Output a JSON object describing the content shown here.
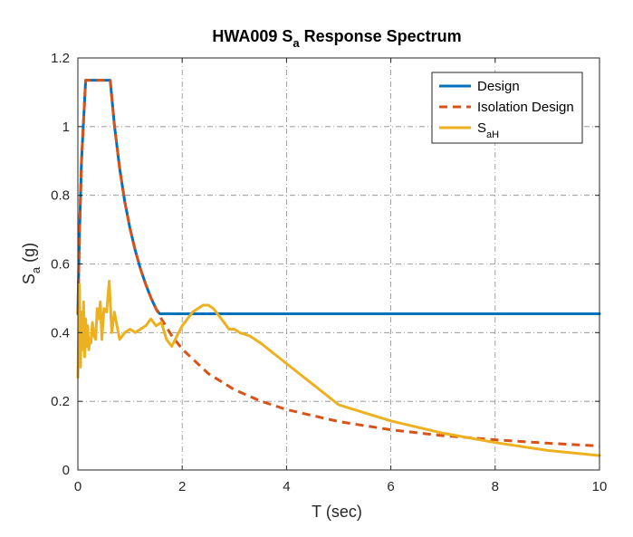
{
  "chart_data": {
    "type": "line",
    "title": {
      "main": "HWA009 S",
      "sub": "a",
      "rest": " Response Spectrum"
    },
    "xlabel": "T (sec)",
    "ylabel": {
      "main": "S",
      "sub": "a",
      "rest": " (g)"
    },
    "xlim": [
      0,
      10
    ],
    "ylim": [
      0,
      1.2
    ],
    "xticks": [
      "0",
      "2",
      "4",
      "6",
      "8",
      "10"
    ],
    "yticks": [
      "0",
      "0.2",
      "0.4",
      "0.6",
      "0.8",
      "1",
      "1.2"
    ],
    "grid": true,
    "legend_position": "top-right",
    "series": [
      {
        "name": "Design",
        "legend": {
          "main": "Design",
          "sub": ""
        },
        "color": "#0072BD",
        "style": "solid",
        "x": [
          0,
          0.03,
          0.07,
          0.13,
          0.15,
          0.62,
          0.7,
          0.8,
          0.9,
          1.0,
          1.1,
          1.2,
          1.3,
          1.4,
          1.5,
          1.57,
          2,
          3,
          4,
          5,
          6,
          7,
          8,
          9,
          10
        ],
        "y": [
          0.455,
          0.68,
          0.9,
          1.08,
          1.135,
          1.135,
          1.005,
          0.879,
          0.781,
          0.703,
          0.639,
          0.586,
          0.541,
          0.502,
          0.469,
          0.455,
          0.455,
          0.455,
          0.455,
          0.455,
          0.455,
          0.455,
          0.455,
          0.455,
          0.455
        ]
      },
      {
        "name": "Isolation Design",
        "legend": {
          "main": "Isolation Design",
          "sub": ""
        },
        "color": "#D95319",
        "style": "dashed",
        "x": [
          0,
          0.03,
          0.07,
          0.13,
          0.15,
          0.62,
          0.7,
          0.8,
          0.9,
          1.0,
          1.1,
          1.2,
          1.3,
          1.4,
          1.5,
          1.6,
          1.8,
          2.0,
          2.5,
          3.0,
          3.5,
          4.0,
          5.0,
          6.0,
          7.0,
          8.0,
          9.0,
          10.0
        ],
        "y": [
          0.455,
          0.68,
          0.9,
          1.08,
          1.135,
          1.135,
          1.005,
          0.879,
          0.781,
          0.703,
          0.639,
          0.586,
          0.541,
          0.502,
          0.469,
          0.44,
          0.391,
          0.352,
          0.281,
          0.234,
          0.201,
          0.176,
          0.141,
          0.117,
          0.1,
          0.088,
          0.078,
          0.07
        ]
      },
      {
        "name": "SaH",
        "legend": {
          "main": "S",
          "sub": "aH"
        },
        "color": "#EDB120",
        "style": "solid",
        "x": [
          0,
          0.03,
          0.05,
          0.07,
          0.09,
          0.11,
          0.13,
          0.15,
          0.17,
          0.19,
          0.21,
          0.23,
          0.25,
          0.28,
          0.31,
          0.34,
          0.37,
          0.4,
          0.43,
          0.46,
          0.5,
          0.55,
          0.6,
          0.65,
          0.7,
          0.75,
          0.8,
          0.9,
          1.0,
          1.1,
          1.2,
          1.3,
          1.4,
          1.5,
          1.6,
          1.7,
          1.8,
          1.9,
          2.0,
          2.1,
          2.2,
          2.3,
          2.4,
          2.5,
          2.6,
          2.7,
          2.8,
          2.9,
          3.0,
          3.1,
          3.3,
          3.5,
          4.0,
          4.5,
          5.0,
          6.0,
          7.0,
          8.0,
          9.0,
          10.0
        ],
        "y": [
          0.27,
          0.54,
          0.3,
          0.46,
          0.35,
          0.49,
          0.33,
          0.44,
          0.36,
          0.42,
          0.35,
          0.38,
          0.37,
          0.43,
          0.39,
          0.38,
          0.47,
          0.44,
          0.49,
          0.38,
          0.47,
          0.46,
          0.55,
          0.4,
          0.46,
          0.42,
          0.38,
          0.4,
          0.41,
          0.4,
          0.41,
          0.42,
          0.44,
          0.42,
          0.43,
          0.38,
          0.36,
          0.39,
          0.42,
          0.44,
          0.46,
          0.47,
          0.48,
          0.48,
          0.47,
          0.45,
          0.43,
          0.41,
          0.41,
          0.4,
          0.39,
          0.37,
          0.31,
          0.25,
          0.19,
          0.143,
          0.107,
          0.08,
          0.057,
          0.042
        ]
      }
    ]
  }
}
